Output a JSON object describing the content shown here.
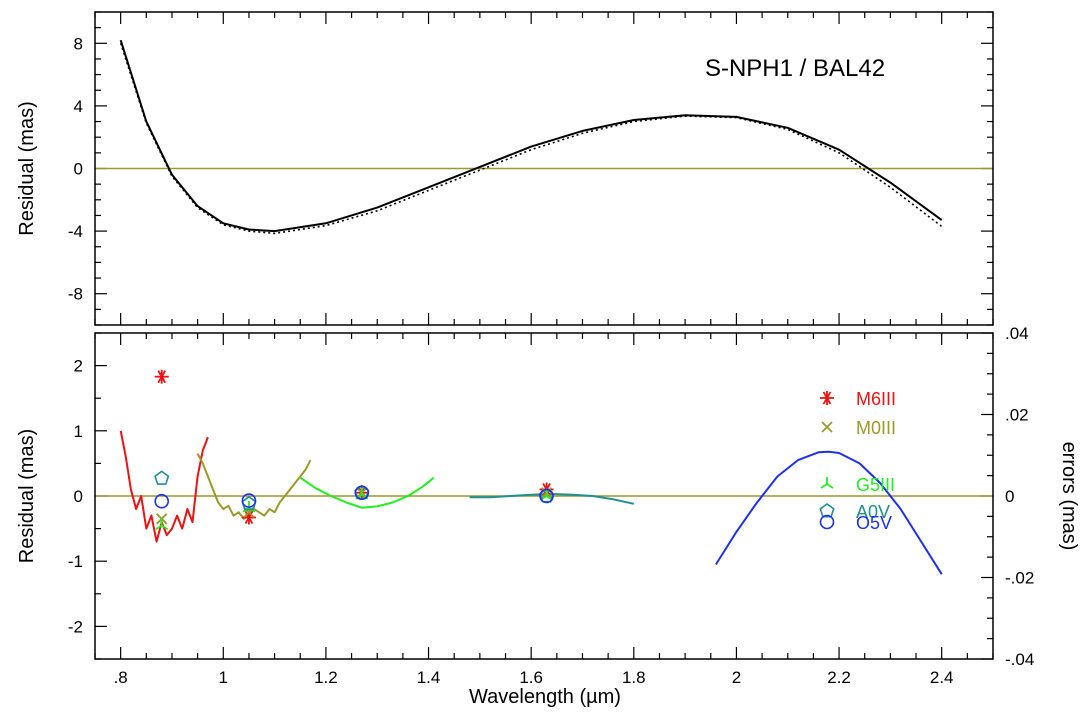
{
  "chart_data": [
    {
      "type": "line",
      "panel": "top",
      "title": "S-NPH1 / BAL42",
      "ylabel": "Residual (mas)",
      "xlim": [
        0.75,
        2.5
      ],
      "ylim": [
        -10,
        10
      ],
      "yticks": [
        8,
        4,
        0,
        -4,
        -8
      ],
      "ytick_labels": [
        "8",
        "4",
        "0",
        "-4",
        "-8"
      ],
      "zero_line_color": "#9a9a2a",
      "series": [
        {
          "style": "solid",
          "color": "#000000",
          "x": [
            0.8,
            0.85,
            0.9,
            0.95,
            1.0,
            1.05,
            1.1,
            1.2,
            1.3,
            1.4,
            1.5,
            1.6,
            1.7,
            1.8,
            1.9,
            2.0,
            2.1,
            2.2,
            2.3,
            2.4
          ],
          "y": [
            8.2,
            3.0,
            -0.4,
            -2.4,
            -3.5,
            -3.9,
            -4.0,
            -3.5,
            -2.5,
            -1.2,
            0.1,
            1.4,
            2.4,
            3.1,
            3.4,
            3.3,
            2.6,
            1.2,
            -0.9,
            -3.3
          ]
        },
        {
          "style": "dotted",
          "color": "#000000",
          "x": [
            0.8,
            0.85,
            0.9,
            0.95,
            1.0,
            1.05,
            1.1,
            1.2,
            1.3,
            1.4,
            1.5,
            1.6,
            1.7,
            1.8,
            1.9,
            2.0,
            2.1,
            2.2,
            2.3,
            2.4
          ],
          "y": [
            8.0,
            2.9,
            -0.5,
            -2.5,
            -3.6,
            -4.0,
            -4.15,
            -3.65,
            -2.7,
            -1.4,
            -0.1,
            1.2,
            2.25,
            3.0,
            3.35,
            3.25,
            2.5,
            1.0,
            -1.2,
            -3.7
          ]
        }
      ]
    },
    {
      "type": "line",
      "panel": "bottom",
      "xlabel": "Wavelength (µm)",
      "ylabel": "Residual (mas)",
      "y2label": "errors (mas)",
      "xlim": [
        0.75,
        2.5
      ],
      "ylim": [
        -2.5,
        2.5
      ],
      "y2lim": [
        -0.04,
        0.04
      ],
      "xticks": [
        0.8,
        1.0,
        1.2,
        1.4,
        1.6,
        1.8,
        2.0,
        2.2,
        2.4
      ],
      "xtick_labels": [
        ".8",
        "1",
        "1.2",
        "1.4",
        "1.6",
        "1.8",
        "2",
        "2.2",
        "2.4"
      ],
      "yticks": [
        2,
        1,
        0,
        -1,
        -2
      ],
      "ytick_labels": [
        "2",
        "1",
        "0",
        "-1",
        "-2"
      ],
      "y2ticks": [
        0.04,
        0.02,
        0,
        -0.02,
        -0.04
      ],
      "y2tick_labels": [
        ".04",
        ".02",
        "0",
        "-.02",
        "-.04"
      ],
      "zero_line_color": "#9a9a2a",
      "error_curves": [
        {
          "color": "#ee1111",
          "x": [
            0.8,
            0.81,
            0.82,
            0.83,
            0.84,
            0.85,
            0.86,
            0.87,
            0.88,
            0.89,
            0.9,
            0.91,
            0.92,
            0.93,
            0.94,
            0.95,
            0.96,
            0.97
          ],
          "y": [
            1.0,
            0.6,
            0.1,
            -0.2,
            0.0,
            -0.5,
            -0.3,
            -0.7,
            -0.4,
            -0.6,
            -0.5,
            -0.3,
            -0.5,
            -0.2,
            -0.4,
            0.3,
            0.7,
            0.9
          ]
        },
        {
          "color": "#9a9a2a",
          "x": [
            0.95,
            0.96,
            0.97,
            0.98,
            0.99,
            1.0,
            1.01,
            1.02,
            1.03,
            1.04,
            1.05,
            1.06,
            1.07,
            1.08,
            1.09,
            1.1,
            1.11,
            1.12,
            1.13,
            1.14,
            1.15,
            1.16,
            1.17
          ],
          "y": [
            0.65,
            0.5,
            0.3,
            0.1,
            -0.1,
            -0.2,
            -0.15,
            -0.3,
            -0.25,
            -0.35,
            -0.3,
            -0.2,
            -0.25,
            -0.3,
            -0.2,
            -0.25,
            -0.1,
            0.0,
            0.1,
            0.2,
            0.3,
            0.4,
            0.55
          ]
        },
        {
          "color": "#22ee22",
          "x": [
            1.15,
            1.18,
            1.21,
            1.24,
            1.27,
            1.3,
            1.33,
            1.36,
            1.39,
            1.41
          ],
          "y": [
            0.28,
            0.12,
            0.0,
            -0.1,
            -0.18,
            -0.16,
            -0.1,
            0.0,
            0.15,
            0.28
          ]
        },
        {
          "color": "#1f8f8f",
          "x": [
            1.48,
            1.52,
            1.56,
            1.6,
            1.64,
            1.68,
            1.72,
            1.76,
            1.8
          ],
          "y": [
            -0.02,
            -0.02,
            0.0,
            0.02,
            0.03,
            0.02,
            0.0,
            -0.05,
            -0.12
          ]
        },
        {
          "color": "#1f2fee",
          "x": [
            1.96,
            2.0,
            2.04,
            2.08,
            2.12,
            2.16,
            2.18,
            2.2,
            2.24,
            2.28,
            2.32,
            2.36,
            2.4
          ],
          "y": [
            -1.05,
            -0.55,
            -0.1,
            0.3,
            0.55,
            0.67,
            0.68,
            0.66,
            0.5,
            0.2,
            -0.2,
            -0.7,
            -1.2
          ]
        }
      ],
      "markers": [
        {
          "marker": "star",
          "color": "#ee1111",
          "points": [
            [
              0.88,
              1.83
            ],
            [
              1.05,
              -0.33
            ],
            [
              1.27,
              0.05
            ],
            [
              1.63,
              0.1
            ]
          ]
        },
        {
          "marker": "x",
          "color": "#9a9a2a",
          "points": [
            [
              0.88,
              -0.35
            ],
            [
              1.05,
              -0.25
            ],
            [
              1.27,
              0.05
            ],
            [
              1.63,
              0.05
            ]
          ]
        },
        {
          "marker": "tri",
          "color": "#22ee22",
          "points": [
            [
              0.88,
              -0.45
            ],
            [
              1.05,
              -0.18
            ],
            [
              1.27,
              0.02
            ],
            [
              1.63,
              0.0
            ]
          ]
        },
        {
          "marker": "pentagon",
          "color": "#1f8f8f",
          "points": [
            [
              0.88,
              0.27
            ],
            [
              1.05,
              -0.12
            ],
            [
              1.27,
              0.05
            ],
            [
              1.63,
              0.0
            ]
          ]
        },
        {
          "marker": "circle",
          "color": "#1f2fee",
          "points": [
            [
              0.88,
              -0.08
            ],
            [
              1.05,
              -0.07
            ],
            [
              1.27,
              0.05
            ],
            [
              1.63,
              0.0
            ]
          ]
        }
      ],
      "legend": {
        "placement": "right",
        "entries": [
          {
            "label": "M6III",
            "marker": "star",
            "color": "#ee1111"
          },
          {
            "label": "M0III",
            "marker": "x",
            "color": "#9a9a2a"
          },
          {
            "label": "G5III",
            "marker": "tri",
            "color": "#22ee22"
          },
          {
            "label": "A0V",
            "marker": "pentagon",
            "color": "#1f8f8f"
          },
          {
            "label": "O5V",
            "marker": "circle",
            "color": "#1f2fee"
          }
        ]
      }
    }
  ]
}
